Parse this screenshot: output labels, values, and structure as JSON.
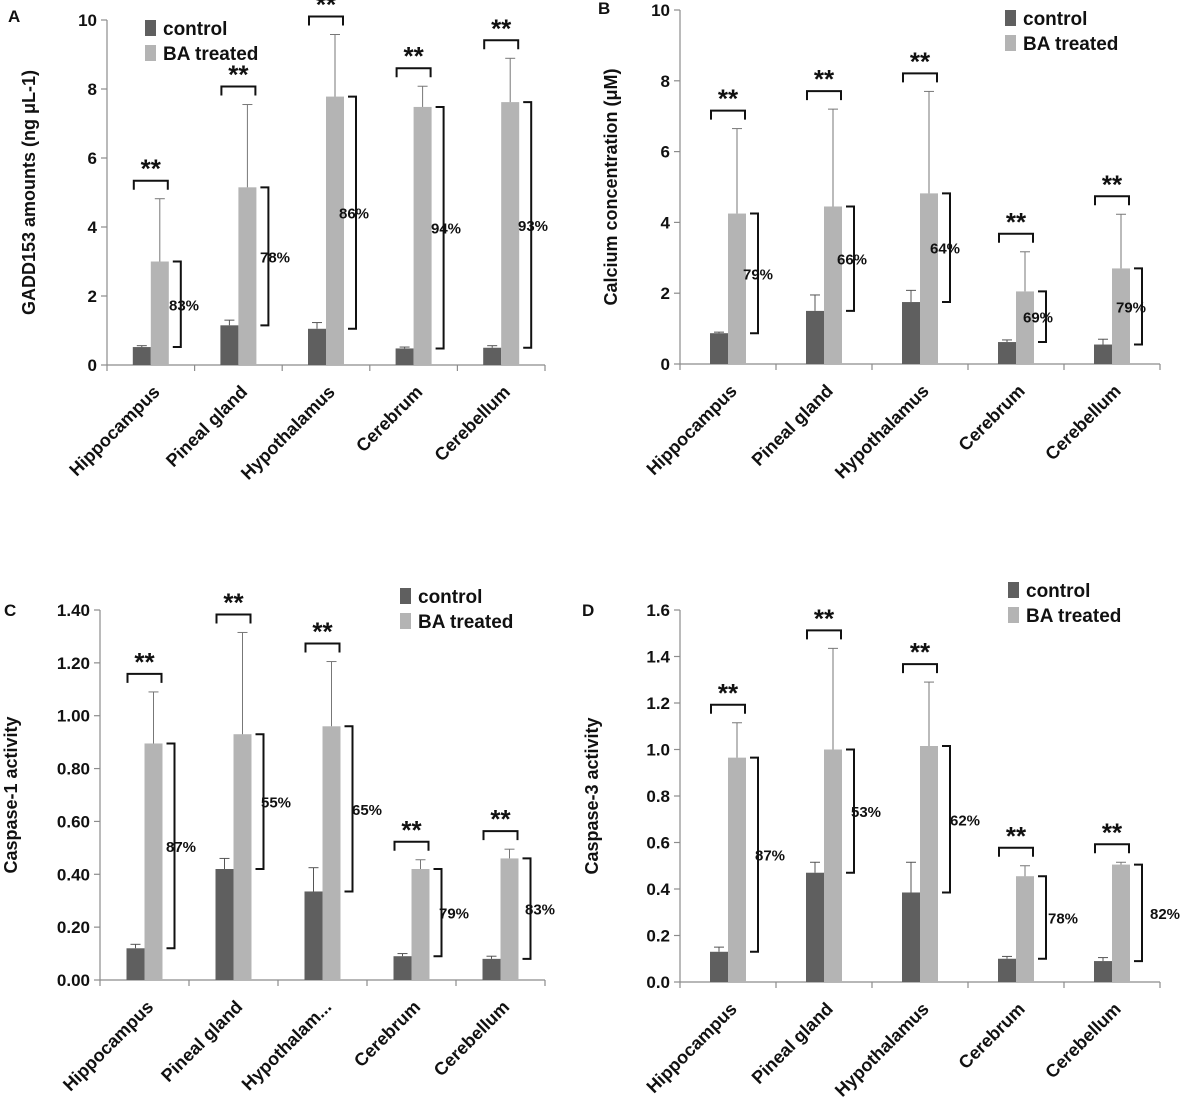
{
  "colors": {
    "control": "#5f5f5f",
    "treated": "#b4b4b4",
    "axis": "#8c8c8c",
    "ink": "#111111"
  },
  "chart_data": [
    {
      "panel": "A",
      "type": "bar",
      "title": "",
      "ylabel": "GADD153 amounts (ng μL-1)",
      "xlabel": "",
      "ylim": [
        0,
        10
      ],
      "yticks": [
        "0",
        "2",
        "4",
        "6",
        "8",
        "10"
      ],
      "categories": [
        "Hippocampus",
        "Pineal gland",
        "Hypothalamus",
        "Cerebrum",
        "Cerebellum"
      ],
      "series": [
        {
          "name": "control",
          "values": [
            0.52,
            1.15,
            1.05,
            0.48,
            0.5
          ],
          "errors": [
            0.04,
            0.15,
            0.18,
            0.04,
            0.06
          ]
        },
        {
          "name": "BA treated",
          "values": [
            3.0,
            5.15,
            7.78,
            7.48,
            7.62
          ],
          "errors": [
            1.82,
            2.4,
            1.8,
            0.6,
            1.27
          ]
        }
      ],
      "significance": "**",
      "percentages": [
        "83%",
        "78%",
        "86%",
        "94%",
        "93%"
      ],
      "legend_position": "top-left"
    },
    {
      "panel": "B",
      "type": "bar",
      "title": "",
      "ylabel": "Calcium concentration (μM)",
      "xlabel": "",
      "ylim": [
        0,
        10
      ],
      "yticks": [
        "0",
        "2",
        "4",
        "6",
        "8",
        "10"
      ],
      "categories": [
        "Hippocampus",
        "Pineal gland",
        "Hypothalamus",
        "Cerebrum",
        "Cerebellum"
      ],
      "series": [
        {
          "name": "control",
          "values": [
            0.87,
            1.5,
            1.75,
            0.62,
            0.55
          ],
          "errors": [
            0.03,
            0.45,
            0.33,
            0.06,
            0.15
          ]
        },
        {
          "name": "BA treated",
          "values": [
            4.25,
            4.45,
            4.82,
            2.05,
            2.7
          ],
          "errors": [
            2.4,
            2.75,
            2.88,
            1.12,
            1.53
          ]
        }
      ],
      "significance": "**",
      "percentages": [
        "79%",
        "66%",
        "64%",
        "69%",
        "79%"
      ],
      "legend_position": "top-right"
    },
    {
      "panel": "C",
      "type": "bar",
      "title": "",
      "ylabel": "Caspase-1 activity",
      "xlabel": "",
      "ylim": [
        0,
        1.4
      ],
      "yticks": [
        "0.00",
        "0.20",
        "0.40",
        "0.60",
        "0.80",
        "1.00",
        "1.20",
        "1.40"
      ],
      "categories": [
        "Hippocampus",
        "Pineal gland",
        "Hypothalam...",
        "Cerebrum",
        "Cerebellum"
      ],
      "series": [
        {
          "name": "control",
          "values": [
            0.12,
            0.42,
            0.335,
            0.09,
            0.08
          ],
          "errors": [
            0.015,
            0.04,
            0.09,
            0.01,
            0.01
          ]
        },
        {
          "name": "BA treated",
          "values": [
            0.895,
            0.93,
            0.96,
            0.42,
            0.46
          ],
          "errors": [
            0.195,
            0.385,
            0.245,
            0.035,
            0.035
          ]
        }
      ],
      "significance": "**",
      "percentages": [
        "87%",
        "55%",
        "65%",
        "79%",
        "83%"
      ],
      "legend_position": "top-right"
    },
    {
      "panel": "D",
      "type": "bar",
      "title": "",
      "ylabel": "Caspase-3 activity",
      "xlabel": "",
      "ylim": [
        0,
        1.6
      ],
      "yticks": [
        "0.0",
        "0.2",
        "0.4",
        "0.6",
        "0.8",
        "1.0",
        "1.2",
        "1.4",
        "1.6"
      ],
      "categories": [
        "Hippocampus",
        "Pineal gland",
        "Hypothalamus",
        "Cerebrum",
        "Cerebellum"
      ],
      "series": [
        {
          "name": "control",
          "values": [
            0.13,
            0.47,
            0.385,
            0.1,
            0.09
          ],
          "errors": [
            0.02,
            0.045,
            0.13,
            0.01,
            0.015
          ]
        },
        {
          "name": "BA treated",
          "values": [
            0.965,
            1.0,
            1.015,
            0.455,
            0.505
          ],
          "errors": [
            0.15,
            0.435,
            0.275,
            0.045,
            0.01
          ]
        }
      ],
      "significance": "**",
      "percentages": [
        "87%",
        "53%",
        "62%",
        "78%",
        "82%"
      ],
      "legend_position": "top-right"
    }
  ]
}
